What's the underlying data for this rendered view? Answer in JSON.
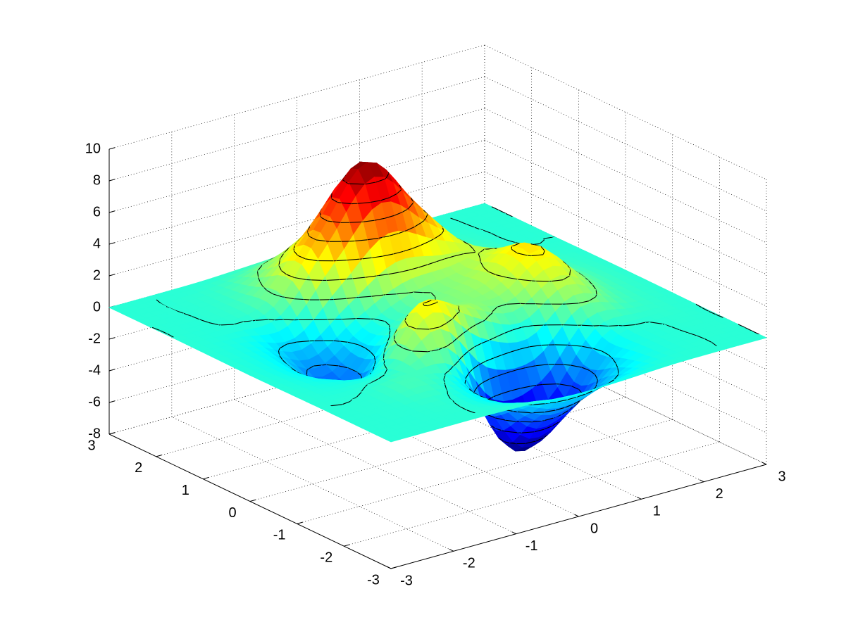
{
  "chart_data": {
    "type": "surface",
    "x": [
      -3,
      -2.25,
      -1.5,
      -0.75,
      0,
      0.75,
      1.5,
      2.25,
      3
    ],
    "y": [
      -3,
      -2.25,
      -1.5,
      -0.75,
      0,
      0.75,
      1.5,
      2.25,
      3
    ],
    "z": [
      [
        0,
        0,
        0,
        -0.07,
        -0.24,
        -0.17,
        -0.03,
        0,
        0
      ],
      [
        0,
        0.01,
        0.01,
        -0.99,
        -3.02,
        -2.05,
        -0.35,
        -0.01,
        0
      ],
      [
        0,
        0.03,
        0.33,
        -0.68,
        -5.68,
        -4.32,
        -0.44,
        0.05,
        0
      ],
      [
        -0.02,
        -0.25,
        -0.28,
        3.09,
        1.4,
        0.2,
        1.78,
        0.41,
        0.02
      ],
      [
        -0.04,
        -0.69,
        -2.77,
        0.06,
        0.98,
        1.57,
        3.27,
        0.7,
        0.03
      ],
      [
        -0.02,
        -0.42,
        -1.76,
        -0.05,
        1.42,
        1.65,
        1.99,
        0.4,
        0.02
      ],
      [
        0,
        -0.03,
        0.48,
        4.37,
        8.0,
        4.72,
        1.19,
        0.12,
        0
      ],
      [
        0,
        0.02,
        0.36,
        2.07,
        3.65,
        2.09,
        0.41,
        0.03,
        0
      ],
      [
        0,
        0,
        0.03,
        0.17,
        0.3,
        0.17,
        0.03,
        0,
        0
      ]
    ],
    "xlim": [
      -3,
      3
    ],
    "ylim": [
      -3,
      3
    ],
    "zlim": [
      -8,
      10
    ],
    "xticks": [
      -3,
      -2,
      -1,
      0,
      1,
      2,
      3
    ],
    "yticks": [
      -3,
      -2,
      -1,
      0,
      1,
      2,
      3
    ],
    "zticks": [
      -8,
      -6,
      -4,
      -2,
      0,
      2,
      4,
      6,
      8,
      10
    ],
    "grid": true,
    "colormap": "jet",
    "contour_levels": [
      -6,
      -5,
      -4,
      -3,
      -2,
      -1,
      0,
      1,
      2,
      3,
      4,
      5,
      6,
      7,
      8
    ]
  }
}
